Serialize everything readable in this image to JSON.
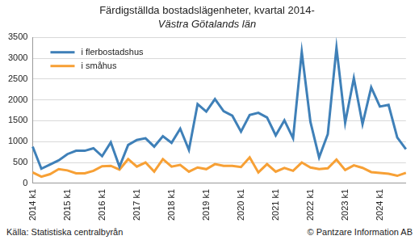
{
  "chart_data": {
    "type": "line",
    "title": "Färdigställda bostadslägenheter, kvartal 2014-",
    "subtitle": "Västra Götalands län",
    "annotations": [
      "Källa: Statistiska centralbyrån",
      "© Pantzare Information AB"
    ],
    "categories": [
      "2014 k1",
      null,
      null,
      null,
      "2015 k1",
      null,
      null,
      null,
      "2016 k1",
      null,
      null,
      null,
      "2017 k1",
      null,
      null,
      null,
      "2018 k1",
      null,
      null,
      null,
      "2019 k1",
      null,
      null,
      null,
      "2020 k1",
      null,
      null,
      null,
      "2021 k1",
      null,
      null,
      null,
      "2022 k1",
      null,
      null,
      null,
      "2023 k1",
      null,
      null,
      null,
      "2024 k1",
      null,
      null,
      null
    ],
    "series": [
      {
        "name": "i flerbostadshus",
        "color": "#3f80b8",
        "values": [
          880,
          350,
          450,
          550,
          700,
          780,
          780,
          840,
          650,
          980,
          400,
          920,
          1040,
          1080,
          880,
          1130,
          970,
          1310,
          800,
          1900,
          1720,
          2020,
          1730,
          1620,
          1240,
          1640,
          1690,
          1580,
          1150,
          1510,
          1080,
          3150,
          1470,
          620,
          1180,
          3250,
          1450,
          2520,
          1420,
          2300,
          1840,
          1880,
          1100,
          820
        ]
      },
      {
        "name": "i småhus",
        "color": "#f7a035",
        "values": [
          260,
          160,
          220,
          340,
          310,
          240,
          240,
          300,
          410,
          420,
          330,
          580,
          400,
          500,
          280,
          580,
          400,
          440,
          280,
          380,
          340,
          460,
          420,
          420,
          390,
          620,
          260,
          460,
          280,
          370,
          300,
          500,
          380,
          340,
          360,
          570,
          320,
          430,
          370,
          270,
          250,
          230,
          180,
          250
        ]
      }
    ],
    "ylim": [
      0,
      3500
    ],
    "yticks": [
      0,
      500,
      1000,
      1500,
      2000,
      2500,
      3000,
      3500
    ],
    "grid": true,
    "legend": "top-left"
  }
}
